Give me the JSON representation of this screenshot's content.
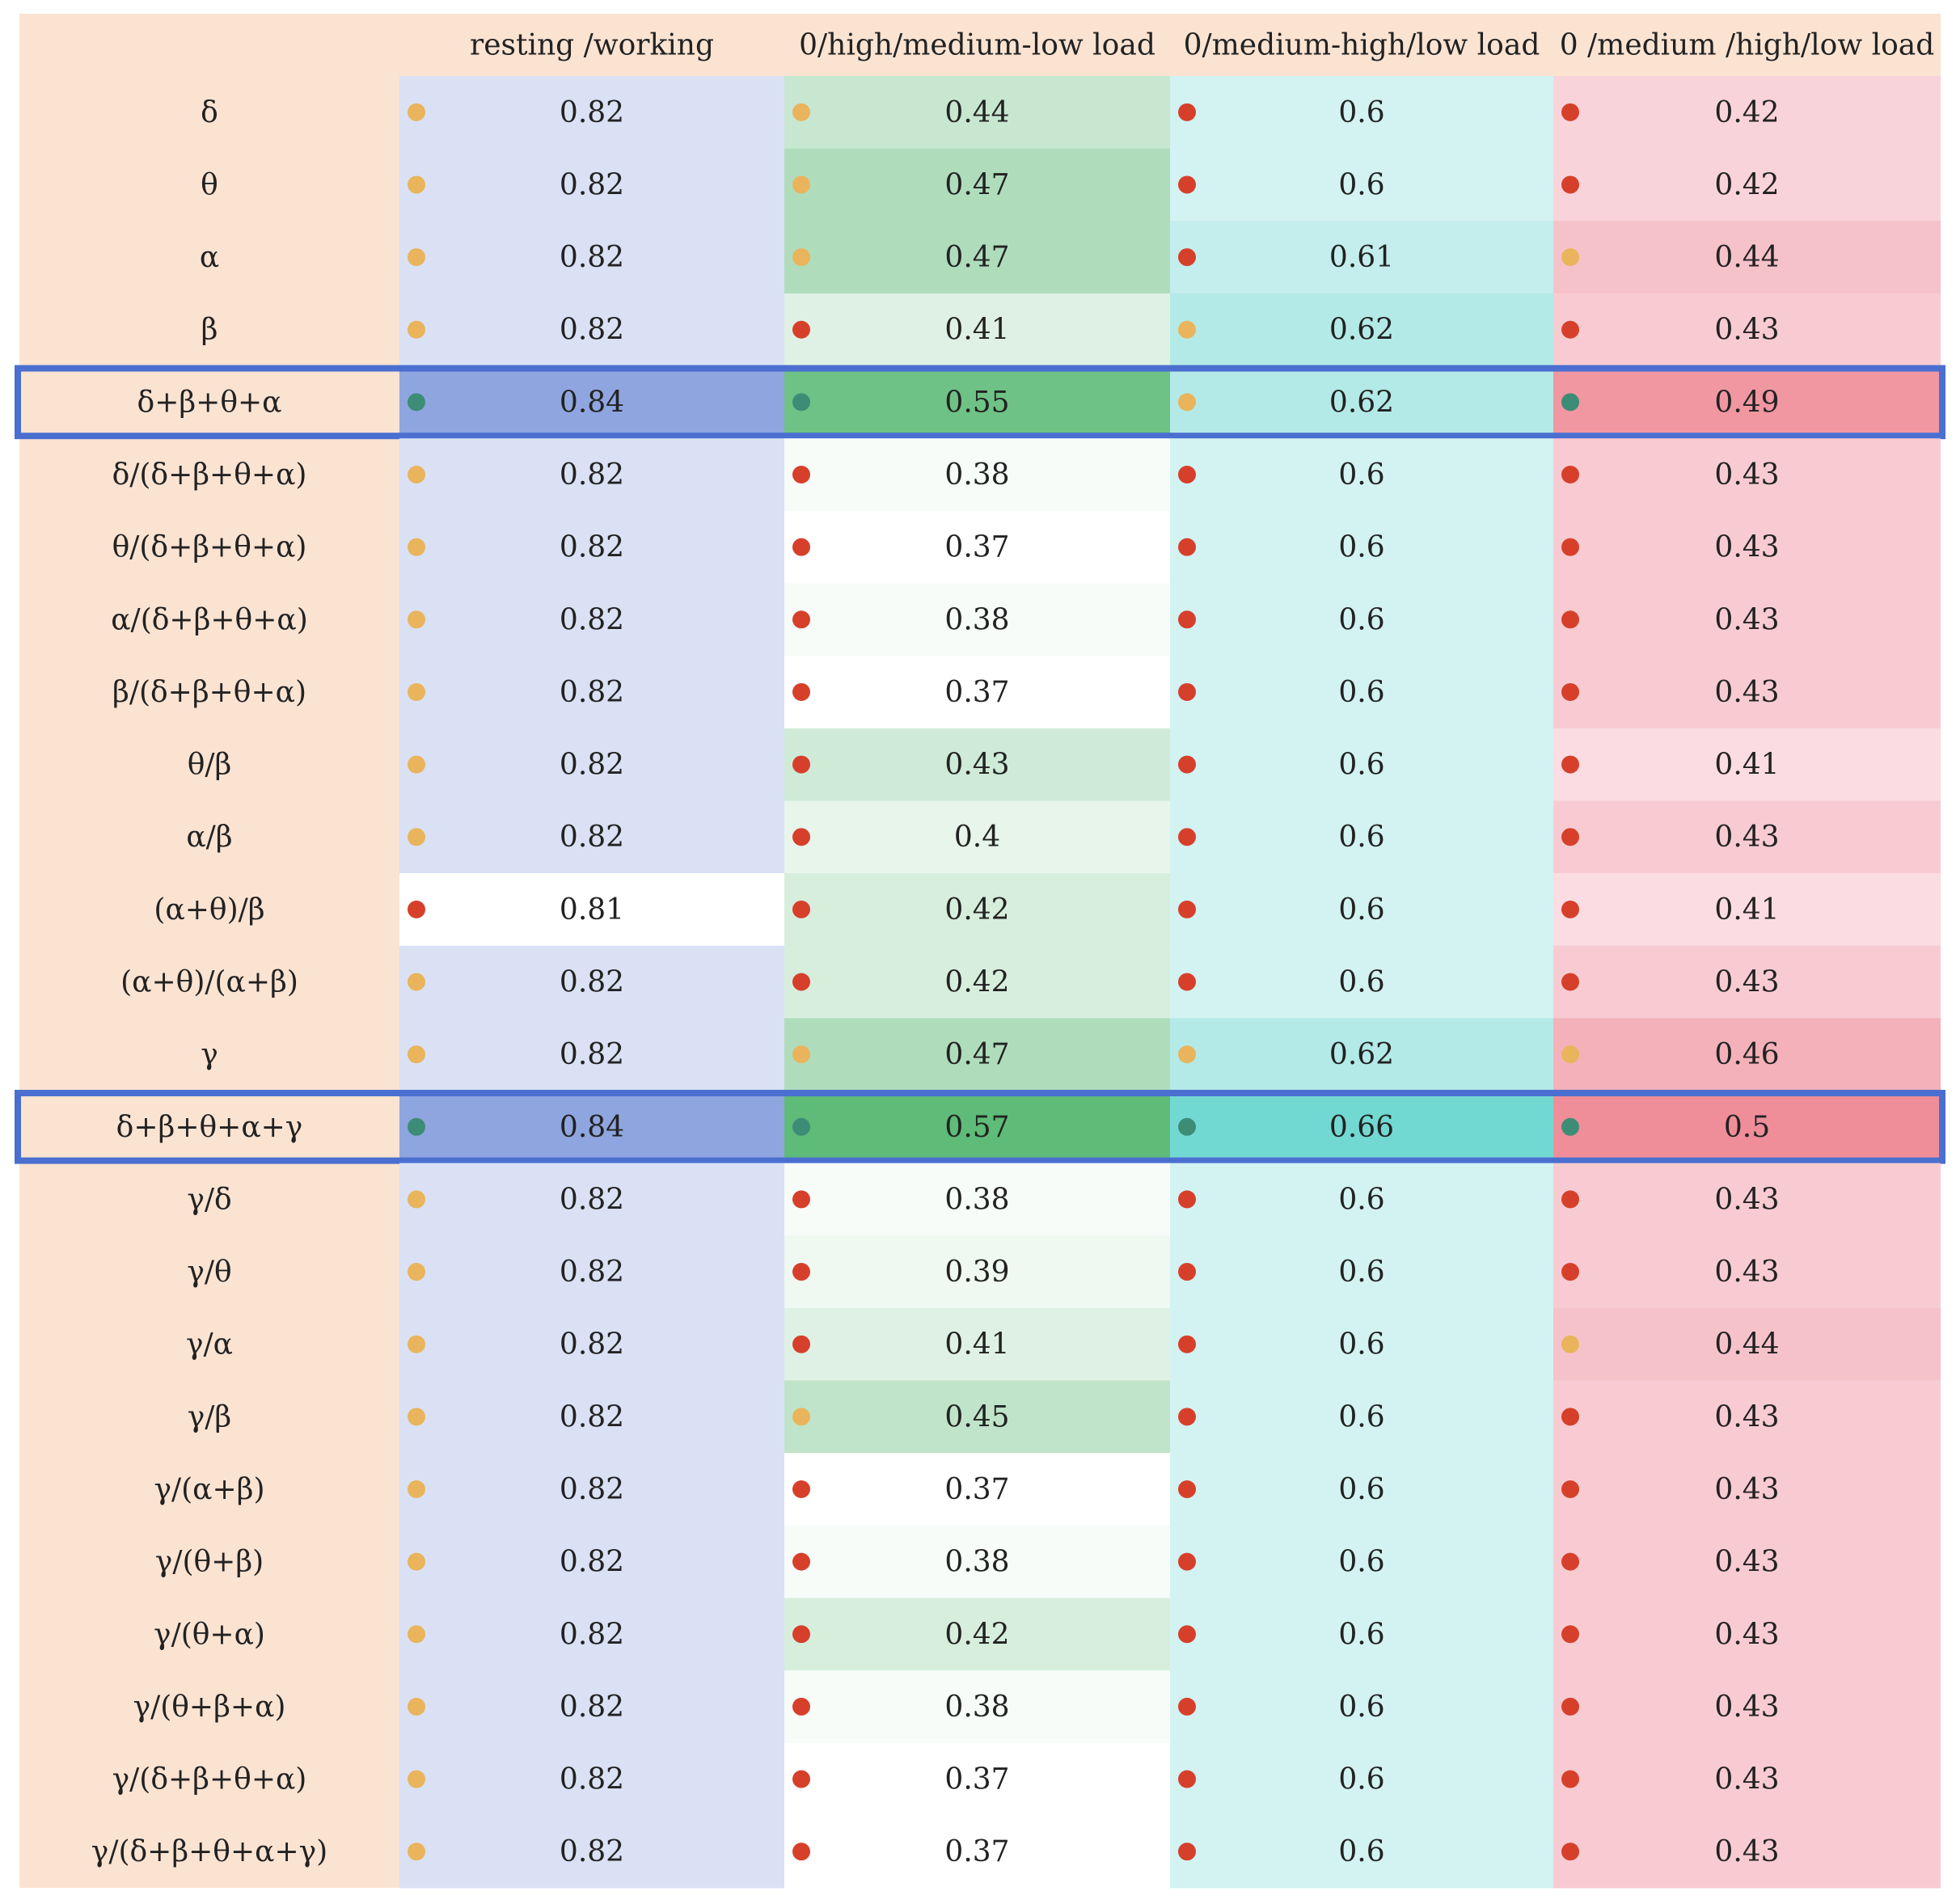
{
  "chart_data": {
    "type": "heatmap",
    "title": "",
    "columns": [
      "resting /working",
      "0/high/medium-low load",
      "0/medium-high/low load",
      "0 /medium /high/low load"
    ],
    "rows": [
      {
        "label": "δ",
        "values": [
          0.82,
          0.44,
          0.6,
          0.42
        ],
        "markers": [
          "yellow",
          "yellow",
          "red",
          "red"
        ],
        "highlight": false
      },
      {
        "label": "θ",
        "values": [
          0.82,
          0.47,
          0.6,
          0.42
        ],
        "markers": [
          "yellow",
          "yellow",
          "red",
          "red"
        ],
        "highlight": false
      },
      {
        "label": "α",
        "values": [
          0.82,
          0.47,
          0.61,
          0.44
        ],
        "markers": [
          "yellow",
          "yellow",
          "red",
          "yellow"
        ],
        "highlight": false
      },
      {
        "label": "β",
        "values": [
          0.82,
          0.41,
          0.62,
          0.43
        ],
        "markers": [
          "yellow",
          "red",
          "yellow",
          "red"
        ],
        "highlight": false
      },
      {
        "label": "δ+β+θ+α",
        "values": [
          0.84,
          0.55,
          0.62,
          0.49
        ],
        "markers": [
          "green",
          "green",
          "yellow",
          "green"
        ],
        "highlight": true
      },
      {
        "label": "δ/(δ+β+θ+α)",
        "values": [
          0.82,
          0.38,
          0.6,
          0.43
        ],
        "markers": [
          "yellow",
          "red",
          "red",
          "red"
        ],
        "highlight": false
      },
      {
        "label": "θ/(δ+β+θ+α)",
        "values": [
          0.82,
          0.37,
          0.6,
          0.43
        ],
        "markers": [
          "yellow",
          "red",
          "red",
          "red"
        ],
        "highlight": false
      },
      {
        "label": "α/(δ+β+θ+α)",
        "values": [
          0.82,
          0.38,
          0.6,
          0.43
        ],
        "markers": [
          "yellow",
          "red",
          "red",
          "red"
        ],
        "highlight": false
      },
      {
        "label": "β/(δ+β+θ+α)",
        "values": [
          0.82,
          0.37,
          0.6,
          0.43
        ],
        "markers": [
          "yellow",
          "red",
          "red",
          "red"
        ],
        "highlight": false
      },
      {
        "label": "θ/β",
        "values": [
          0.82,
          0.43,
          0.6,
          0.41
        ],
        "markers": [
          "yellow",
          "red",
          "red",
          "red"
        ],
        "highlight": false
      },
      {
        "label": "α/β",
        "values": [
          0.82,
          0.4,
          0.6,
          0.43
        ],
        "markers": [
          "yellow",
          "red",
          "red",
          "red"
        ],
        "highlight": false
      },
      {
        "label": "(α+θ)/β",
        "values": [
          0.81,
          0.42,
          0.6,
          0.41
        ],
        "markers": [
          "red",
          "red",
          "red",
          "red"
        ],
        "highlight": false
      },
      {
        "label": "(α+θ)/(α+β)",
        "values": [
          0.82,
          0.42,
          0.6,
          0.43
        ],
        "markers": [
          "yellow",
          "red",
          "red",
          "red"
        ],
        "highlight": false
      },
      {
        "label": "γ",
        "values": [
          0.82,
          0.47,
          0.62,
          0.46
        ],
        "markers": [
          "yellow",
          "yellow",
          "yellow",
          "yellow"
        ],
        "highlight": false
      },
      {
        "label": "δ+β+θ+α+γ",
        "values": [
          0.84,
          0.57,
          0.66,
          0.5
        ],
        "markers": [
          "green",
          "green",
          "green",
          "green"
        ],
        "highlight": true
      },
      {
        "label": "γ/δ",
        "values": [
          0.82,
          0.38,
          0.6,
          0.43
        ],
        "markers": [
          "yellow",
          "red",
          "red",
          "red"
        ],
        "highlight": false
      },
      {
        "label": "γ/θ",
        "values": [
          0.82,
          0.39,
          0.6,
          0.43
        ],
        "markers": [
          "yellow",
          "red",
          "red",
          "red"
        ],
        "highlight": false
      },
      {
        "label": "γ/α",
        "values": [
          0.82,
          0.41,
          0.6,
          0.44
        ],
        "markers": [
          "yellow",
          "red",
          "red",
          "yellow"
        ],
        "highlight": false
      },
      {
        "label": "γ/β",
        "values": [
          0.82,
          0.45,
          0.6,
          0.43
        ],
        "markers": [
          "yellow",
          "yellow",
          "red",
          "red"
        ],
        "highlight": false
      },
      {
        "label": "γ/(α+β)",
        "values": [
          0.82,
          0.37,
          0.6,
          0.43
        ],
        "markers": [
          "yellow",
          "red",
          "red",
          "red"
        ],
        "highlight": false
      },
      {
        "label": "γ/(θ+β)",
        "values": [
          0.82,
          0.38,
          0.6,
          0.43
        ],
        "markers": [
          "yellow",
          "red",
          "red",
          "red"
        ],
        "highlight": false
      },
      {
        "label": "γ/(θ+α)",
        "values": [
          0.82,
          0.42,
          0.6,
          0.43
        ],
        "markers": [
          "yellow",
          "red",
          "red",
          "red"
        ],
        "highlight": false
      },
      {
        "label": "γ/(θ+β+α)",
        "values": [
          0.82,
          0.38,
          0.6,
          0.43
        ],
        "markers": [
          "yellow",
          "red",
          "red",
          "red"
        ],
        "highlight": false
      },
      {
        "label": "γ/(δ+β+θ+α)",
        "values": [
          0.82,
          0.37,
          0.6,
          0.43
        ],
        "markers": [
          "yellow",
          "red",
          "red",
          "red"
        ],
        "highlight": false
      },
      {
        "label": "γ/(δ+β+θ+α+γ)",
        "values": [
          0.82,
          0.37,
          0.6,
          0.43
        ],
        "markers": [
          "yellow",
          "red",
          "red",
          "red"
        ],
        "highlight": false
      }
    ],
    "colors": {
      "label_column": "#fbe3d2",
      "highlight_border": "#4a6fd0",
      "marker_green": "#3d8c76",
      "marker_yellow": "#e9b45c",
      "marker_red": "#d6402b",
      "column_scales": [
        {
          "low": "#ffffff",
          "high": "#8fa5df"
        },
        {
          "low": "#ffffff",
          "high": "#5ebb78"
        },
        {
          "low": "#d3f2f2",
          "high": "#72d9d2"
        },
        {
          "low": "#fadce2",
          "high": "#ef8e99"
        }
      ]
    }
  }
}
